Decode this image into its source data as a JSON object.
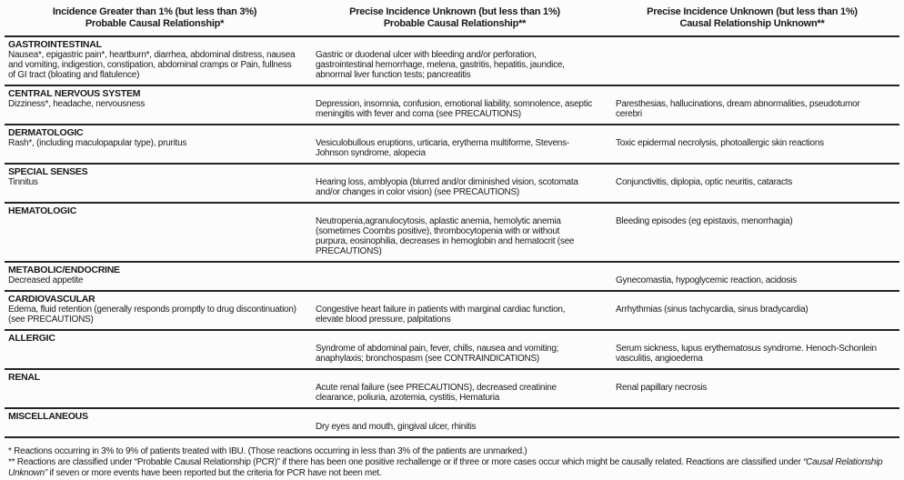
{
  "table": {
    "header": {
      "col1_line1": "Incidence Greater than 1%  (but less than 3%)",
      "col1_line2": "Probable Causal Relationship*",
      "col2_line1": "Precise Incidence Unknown (but less than 1%)",
      "col2_line2": "Probable Causal Relationship**",
      "col3_line1": "Precise Incidence Unknown (but less than 1%)",
      "col3_line2": "Causal Relationship Unknown**"
    },
    "rows": [
      {
        "category": "GASTROINTESTINAL",
        "col1": "Nausea*, epigastric pain*, heartburn*, diarrhea, abdominal distress, nausea and vomiting, indigestion, constipation, abdominal cramps or Pain, fullness of GI tract (bloating and flatulence)",
        "col2": "Gastric or duodenal ulcer with bleeding and/or perforation, gastrointestinal hemorrhage, melena, gastritis, hepatitis, jaundice, abnormal liver function tests; pancreatitis",
        "col3": ""
      },
      {
        "category": "CENTRAL NERVOUS SYSTEM",
        "col1": "Dizziness*, headache, nervousness",
        "col2": "Depression, insomnia, confusion, emotional liability, somnolence, aseptic meningitis with fever and coma (see PRECAUTIONS)",
        "col3": "Paresthesias, hallucinations, dream abnormalities, pseudotumor cerebri"
      },
      {
        "category": "DERMATOLOGIC",
        "col1": "Rash*, (including maculopapular type), pruritus",
        "col2": "Vesiculobullous eruptions, urticaria, erythema multiforme, Stevens-Johnson syndrome, alopecia",
        "col3": "Toxic epidermal necrolysis, photoallergic skin reactions"
      },
      {
        "category": "SPECIAL SENSES",
        "col1": "Tinnitus",
        "col2": "Hearing loss, amblyopia (blurred and/or diminished vision, scotomata and/or changes in color vision) (see PRECAUTIONS)",
        "col3": "Conjunctivitis, diplopia, optic neuritis, cataracts"
      },
      {
        "category": "HEMATOLOGIC",
        "col1": "",
        "col2": "Neutropenia,agranulocytosis, aplastic anemia, hemolytic anemia (sometimes Coombs positive), thrombocytopenia with or without purpura, eosinophilia, decreases in hemoglobin and hematocrit (see PRECAUTIONS)",
        "col3": "Bleeding episodes (eg epistaxis, menorrhagia)"
      },
      {
        "category": "METABOLIC/ENDOCRINE",
        "col1": "Decreased appetite",
        "col2": "",
        "col3": "Gynecomastia, hypoglycemic reaction, acidosis"
      },
      {
        "category": "CARDIOVASCULAR",
        "col1": "Edema, fluid retention (generally responds promptly to drug discontinuation) (see PRECAUTIONS)",
        "col2": "Congestive heart failure in patients with marginal cardiac function, elevate blood pressure, palpitations",
        "col3": "Arrhythmias (sinus tachycardia, sinus bradycardia)"
      },
      {
        "category": "ALLERGIC",
        "col1": "",
        "col2": "Syndrome of abdominal pain, fever, chills, nausea and vomiting; anaphylaxis; bronchospasm (see CONTRAINDICATIONS)",
        "col3": "Serum sickness, lupus erythematosus syndrome. Henoch-Schonlein vasculitis, angioedema"
      },
      {
        "category": "RENAL",
        "col1": "",
        "col2": "Acute renal failure (see PRECAUTIONS), decreased creatinine clearance, poliuria, azotemia, cystitis, Hematuria",
        "col3": "Renal papillary necrosis"
      },
      {
        "category": "MISCELLANEOUS",
        "col1": "",
        "col2": "Dry eyes and mouth, gingival ulcer, rhinitis",
        "col3": ""
      }
    ]
  },
  "footnotes": {
    "note1": "* Reactions occurring in 3% to 9% of patients treated with IBU. (Those reactions occurring in less than 3% of the patients are unmarked.)",
    "note2_part1": "** Reactions are classified under “Probable Causal Relationship (PCR)” if there has been one positive rechallenge or if three or more cases occur which might be causally related. Reactions are classified under ",
    "note2_italic": "“Causal Relationship Unknown”",
    "note2_part2": " if seven or more events have been reported but the criteria for PCR have not been met."
  }
}
